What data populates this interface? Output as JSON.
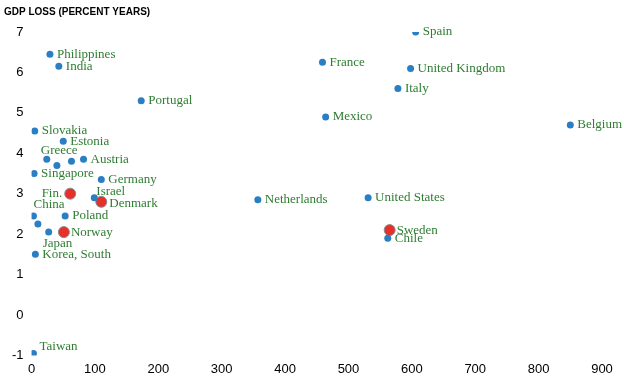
{
  "chart_data": {
    "type": "scatter",
    "title": "GDP LOSS (PERCENT YEARS)",
    "xlim": [
      0,
      900
    ],
    "xticks": [
      0,
      100,
      200,
      300,
      400,
      500,
      600,
      700,
      800,
      900
    ],
    "ylim": [
      -1,
      7
    ],
    "yticks": [
      -1,
      0,
      1,
      2,
      3,
      4,
      5,
      6,
      7
    ],
    "grid": false,
    "series": [
      {
        "color": "#2a7fc4",
        "marker": "circle",
        "labels": [
          "Spain",
          "United Kingdom",
          "France",
          "Italy",
          "Mexico",
          "Belgium",
          "United States",
          "Netherlands",
          "Chile",
          "Philippines",
          "India",
          "Portugal",
          "Slovakia",
          "Estonia",
          "Greece",
          null,
          null,
          "Austria",
          "Singapore",
          "Germany",
          "Israel",
          "China",
          "Poland",
          null,
          "Japan",
          "Korea, South",
          "Taiwan"
        ],
        "x": [
          606,
          598,
          459,
          578,
          464,
          850,
          531,
          357,
          562,
          29,
          43,
          173,
          5,
          50,
          24,
          40,
          63,
          82,
          4,
          110,
          99,
          3,
          53,
          10,
          27,
          6,
          3
        ],
        "values": [
          7.0,
          6.1,
          6.25,
          5.6,
          4.9,
          4.7,
          2.9,
          2.85,
          1.9,
          6.45,
          6.15,
          5.3,
          4.55,
          4.3,
          3.85,
          3.7,
          3.8,
          3.85,
          3.5,
          3.35,
          2.9,
          2.45,
          2.45,
          2.25,
          2.05,
          1.5,
          -0.95
        ]
      },
      {
        "color": "#e8302a",
        "marker": "large_circle",
        "labels": [
          "Fin.",
          "Denmark",
          "Norway",
          "Sweden"
        ],
        "x": [
          61,
          110,
          51,
          565
        ],
        "values": [
          3.0,
          2.8,
          2.05,
          2.1
        ]
      }
    ]
  }
}
